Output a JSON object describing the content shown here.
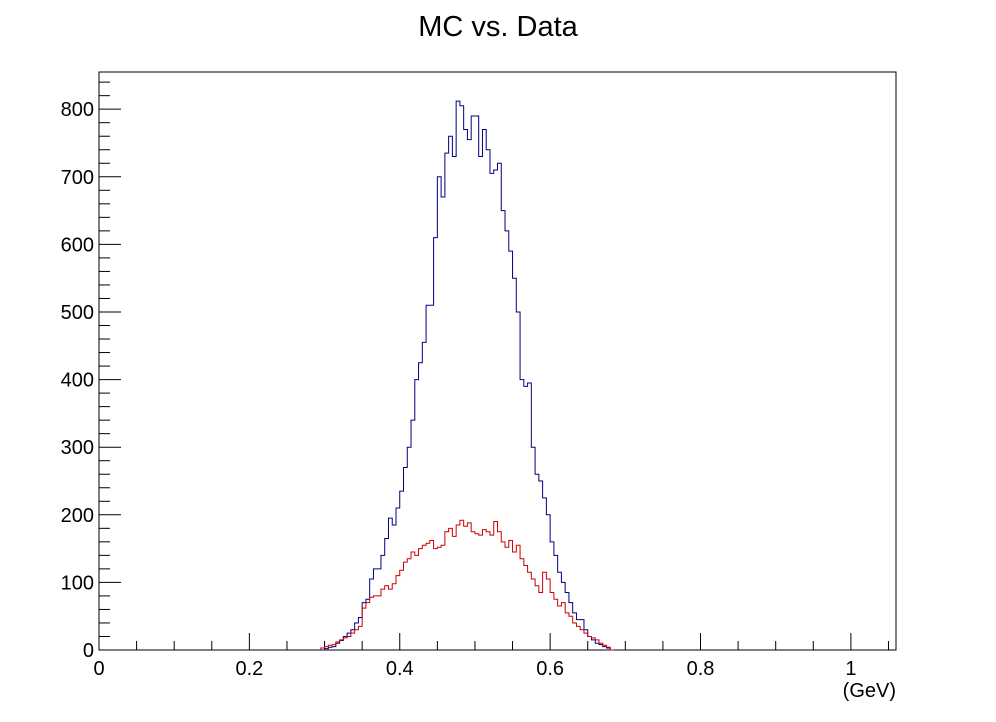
{
  "chart_data": {
    "type": "step",
    "title": "MC vs. Data",
    "xlabel": "(GeV)",
    "ylabel": "",
    "xlim": [
      0,
      1.06
    ],
    "ylim": [
      0,
      855
    ],
    "bin_width": 0.005,
    "legend": "none",
    "grid": false,
    "x_ticks": [
      {
        "value": 0,
        "label": "0"
      },
      {
        "value": 0.2,
        "label": "0.2"
      },
      {
        "value": 0.4,
        "label": "0.4"
      },
      {
        "value": 0.6,
        "label": "0.6"
      },
      {
        "value": 0.8,
        "label": "0.8"
      },
      {
        "value": 1,
        "label": "1"
      }
    ],
    "y_ticks": [
      {
        "value": 0,
        "label": "0"
      },
      {
        "value": 100,
        "label": "100"
      },
      {
        "value": 200,
        "label": "200"
      },
      {
        "value": 300,
        "label": "300"
      },
      {
        "value": 400,
        "label": "400"
      },
      {
        "value": 500,
        "label": "500"
      },
      {
        "value": 600,
        "label": "600"
      },
      {
        "value": 700,
        "label": "700"
      },
      {
        "value": 800,
        "label": "800"
      }
    ],
    "series": [
      {
        "color": "#000080",
        "x_start": 0.295,
        "values": [
          0,
          2,
          4,
          5,
          10,
          14,
          20,
          25,
          30,
          40,
          48,
          70,
          75,
          105,
          120,
          120,
          140,
          165,
          195,
          185,
          210,
          235,
          270,
          300,
          340,
          400,
          425,
          455,
          510,
          510,
          610,
          700,
          670,
          735,
          760,
          730,
          812,
          805,
          770,
          755,
          790,
          790,
          730,
          770,
          740,
          705,
          710,
          720,
          650,
          620,
          590,
          550,
          500,
          400,
          390,
          395,
          300,
          260,
          250,
          225,
          200,
          160,
          140,
          115,
          100,
          85,
          70,
          55,
          45,
          45,
          30,
          20,
          15,
          10,
          8,
          5,
          3,
          0
        ]
      },
      {
        "color": "#cc0000",
        "x_start": 0.295,
        "values": [
          3,
          5,
          7,
          8,
          12,
          15,
          18,
          20,
          25,
          30,
          35,
          62,
          70,
          78,
          80,
          80,
          90,
          95,
          90,
          98,
          110,
          118,
          130,
          135,
          145,
          140,
          150,
          155,
          158,
          162,
          150,
          152,
          155,
          175,
          180,
          168,
          185,
          192,
          183,
          188,
          175,
          172,
          170,
          178,
          175,
          170,
          190,
          175,
          160,
          152,
          162,
          145,
          155,
          135,
          125,
          115,
          105,
          95,
          85,
          115,
          105,
          85,
          75,
          65,
          70,
          55,
          50,
          40,
          35,
          30,
          25,
          20,
          18,
          15,
          10,
          7,
          4,
          0
        ]
      }
    ]
  }
}
